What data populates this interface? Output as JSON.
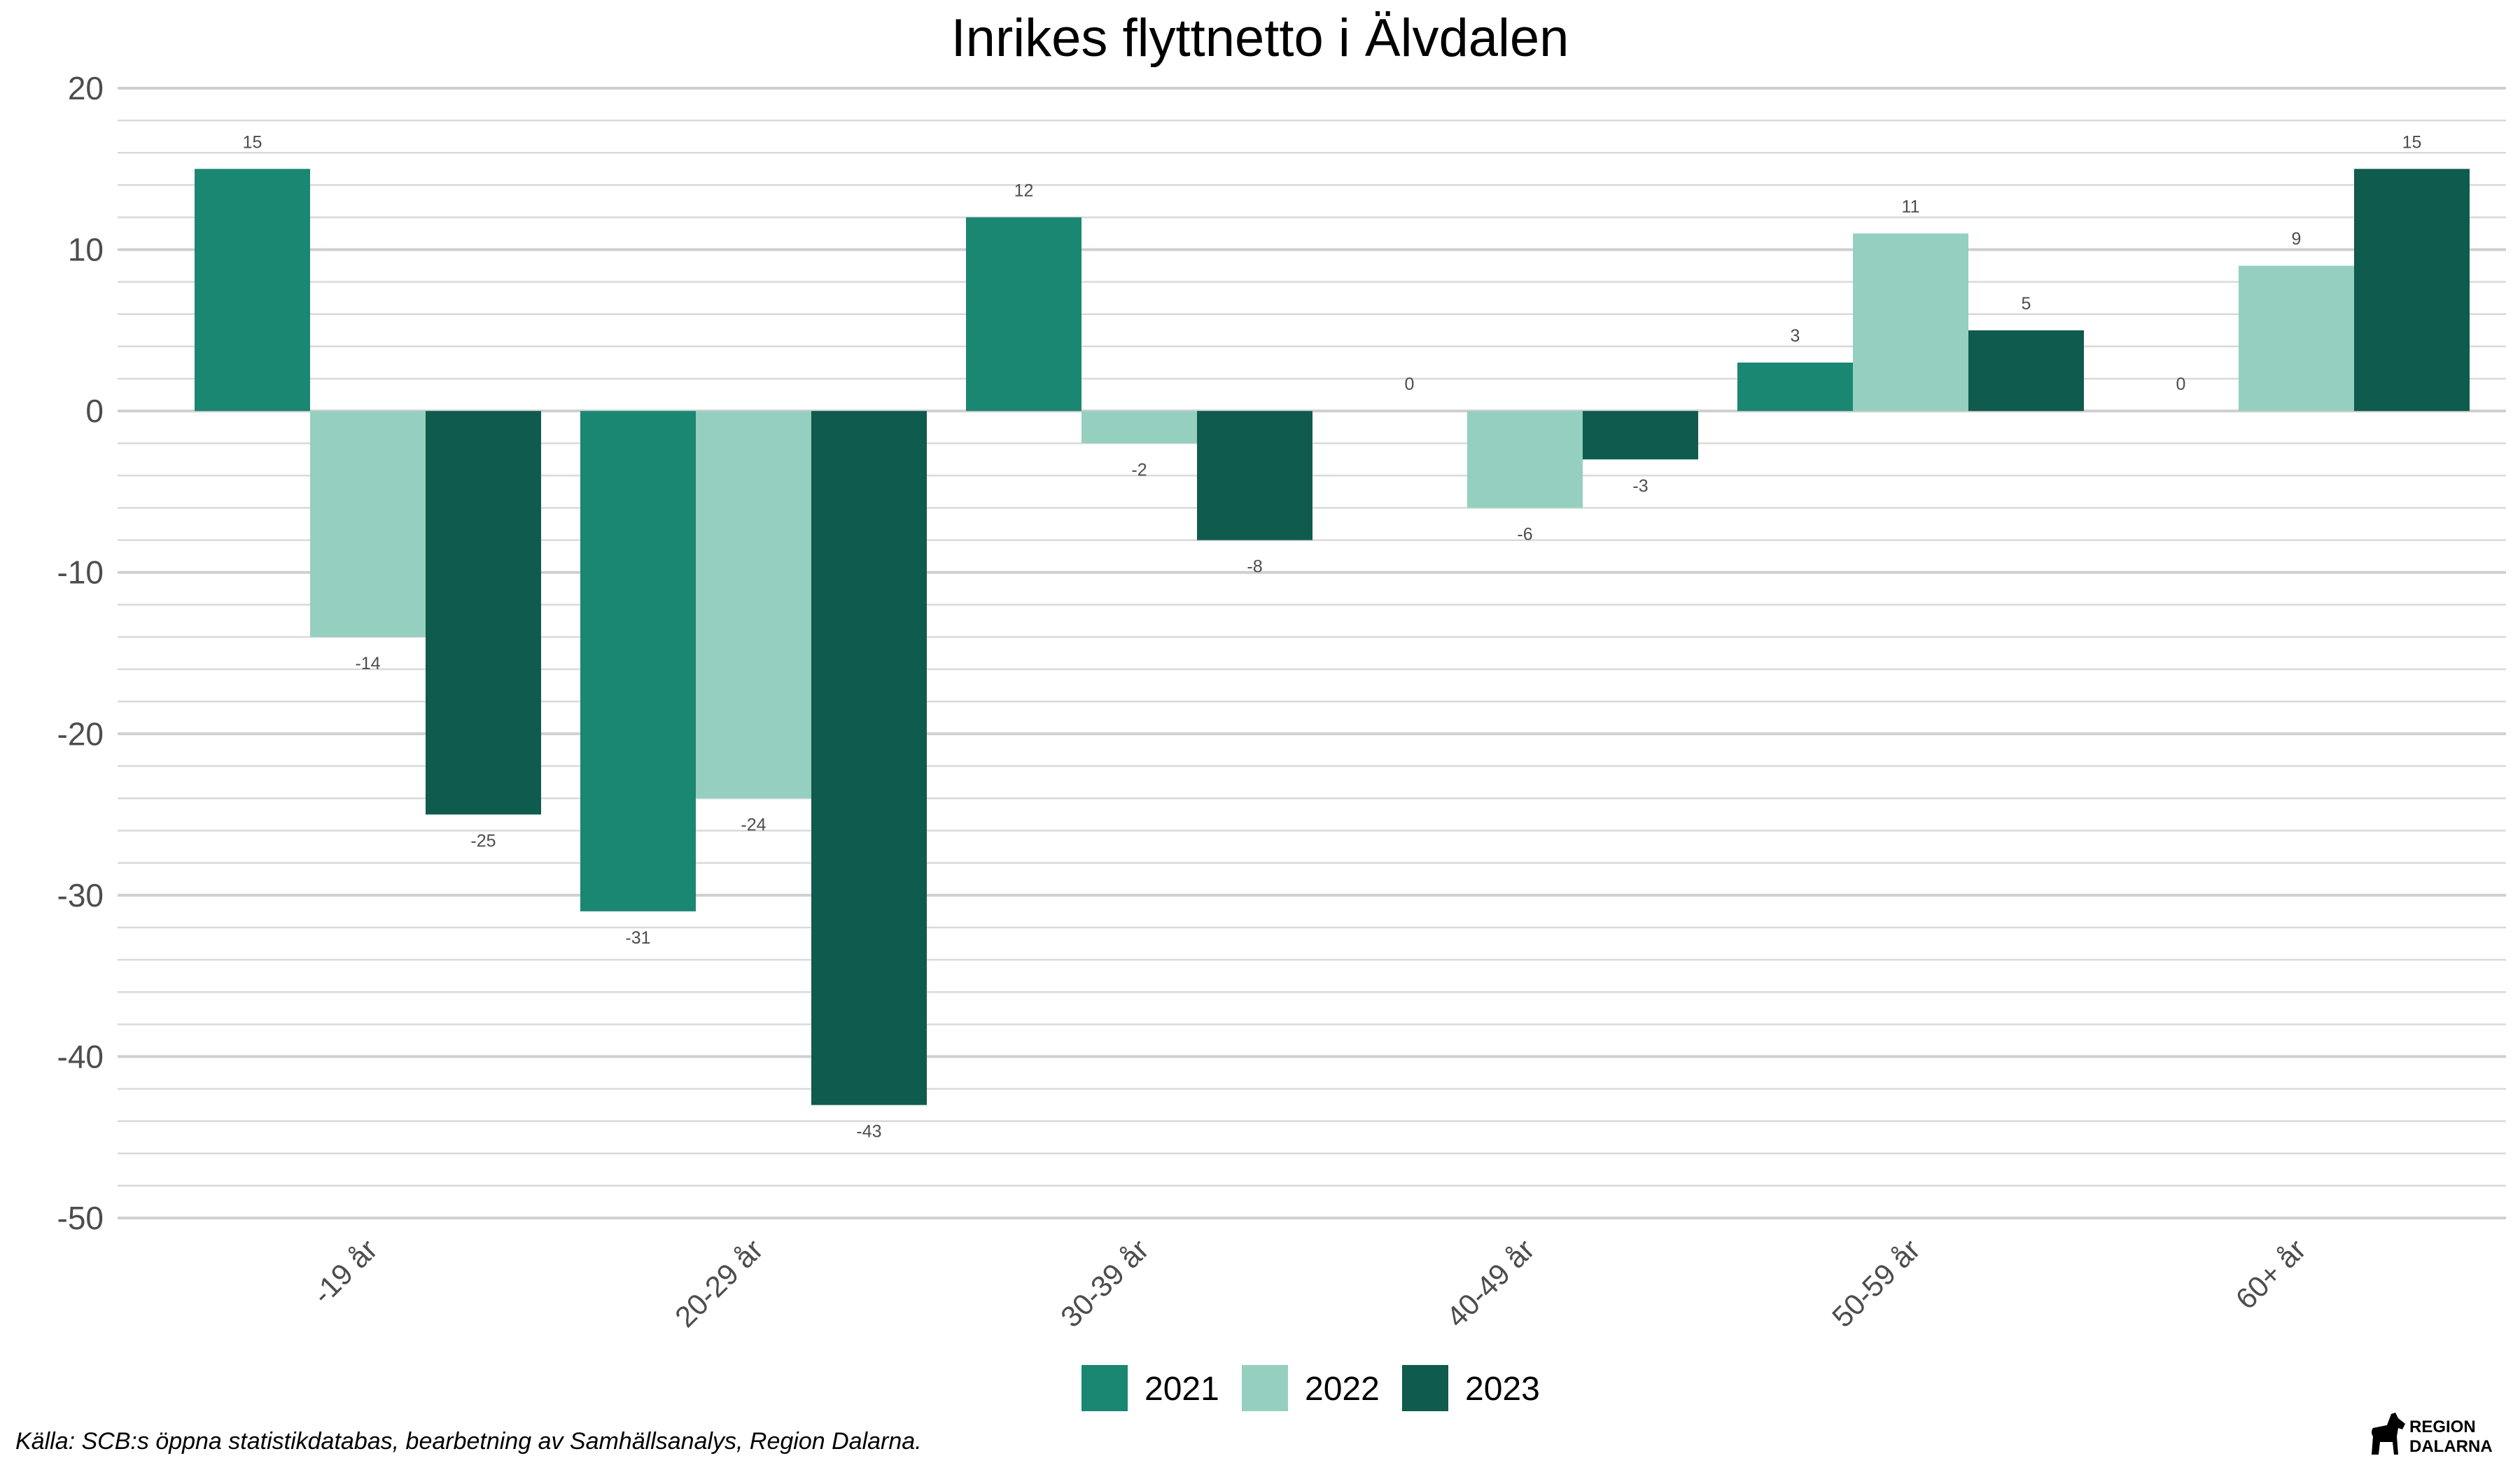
{
  "chart_data": {
    "type": "bar",
    "title": "Inrikes flyttnetto i Älvdalen",
    "categories": [
      "-19 år",
      "20-29 år",
      "30-39 år",
      "40-49 år",
      "50-59 år",
      "60+ år"
    ],
    "series": [
      {
        "name": "2021",
        "color": "#1a8772",
        "values": [
          15,
          -31,
          12,
          0,
          3,
          0
        ]
      },
      {
        "name": "2022",
        "color": "#95cfbf",
        "values": [
          -14,
          -24,
          -2,
          -6,
          11,
          9
        ]
      },
      {
        "name": "2023",
        "color": "#0f5b4d",
        "values": [
          -25,
          -43,
          -8,
          -3,
          5,
          15
        ]
      }
    ],
    "ylim": [
      -50,
      20
    ],
    "yticks": [
      "20",
      "10",
      "0",
      "-10",
      "-20",
      "-30",
      "-40",
      "-50"
    ],
    "grid": true,
    "legend_position": "bottom-center",
    "xlabel": "",
    "ylabel": ""
  },
  "caption": "Källa: SCB:s öppna statistikdatabas, bearbetning av Samhällsanalys, Region Dalarna.",
  "logo": {
    "line1": "REGION",
    "line2": "DALARNA",
    "icon": "dala-horse-icon"
  }
}
